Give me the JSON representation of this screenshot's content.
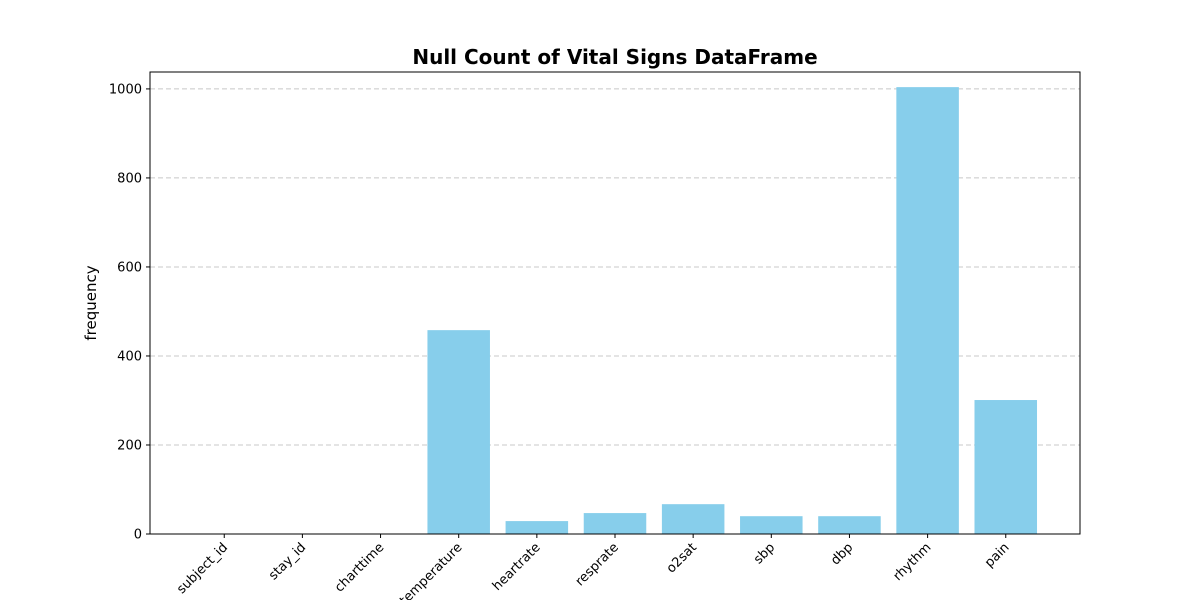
{
  "chart_data": {
    "type": "bar",
    "title": "Null Count of Vital Signs DataFrame",
    "y_label": "frequency",
    "categories": [
      "subject_id",
      "stay_id",
      "charttime",
      "temperature",
      "heartrate",
      "resprate",
      "o2sat",
      "sbp",
      "dbp",
      "rhythm",
      "pain"
    ],
    "values": [
      0,
      0,
      0,
      458,
      29,
      47,
      67,
      40,
      40,
      1004,
      301
    ],
    "color": "#87ceeb",
    "ylim": [
      0,
      1038
    ],
    "yticks": [
      0,
      200,
      400,
      600,
      800,
      1000
    ],
    "grid": true
  }
}
